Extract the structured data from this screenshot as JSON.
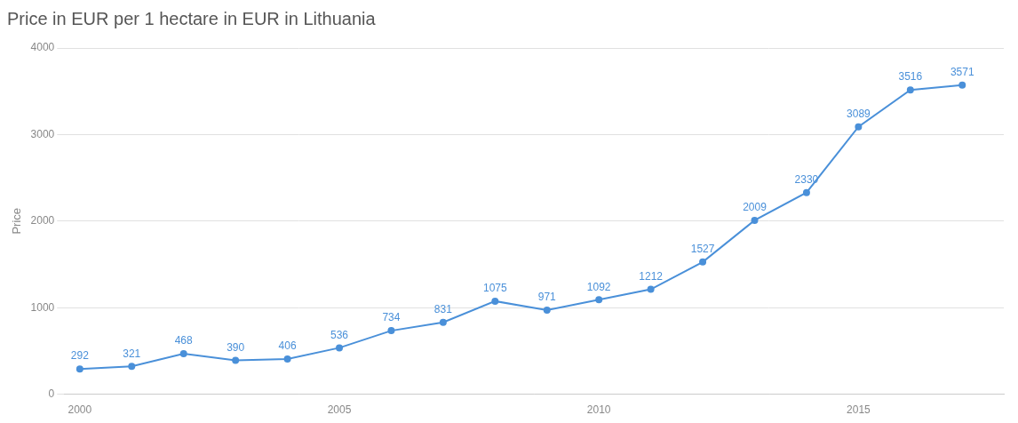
{
  "chart_data": {
    "type": "line",
    "title": "Price in EUR per 1 hectare in EUR in Lithuania",
    "ylabel": "Price",
    "x": [
      2000,
      2001,
      2002,
      2003,
      2004,
      2005,
      2006,
      2007,
      2008,
      2009,
      2010,
      2011,
      2012,
      2013,
      2014,
      2015,
      2016,
      2017
    ],
    "values": [
      292,
      321,
      468,
      390,
      406,
      536,
      734,
      831,
      1075,
      971,
      1092,
      1212,
      1527,
      2009,
      2330,
      3089,
      3516,
      3571
    ],
    "color": "#4a90d9",
    "xlim": [
      1999.7,
      2017.8
    ],
    "xticks": [
      2000,
      2005,
      2010,
      2015
    ],
    "ylim": [
      0,
      4000
    ],
    "yticks": [
      0,
      1000,
      2000,
      3000,
      4000
    ],
    "grid": "y",
    "data_labels": true
  }
}
